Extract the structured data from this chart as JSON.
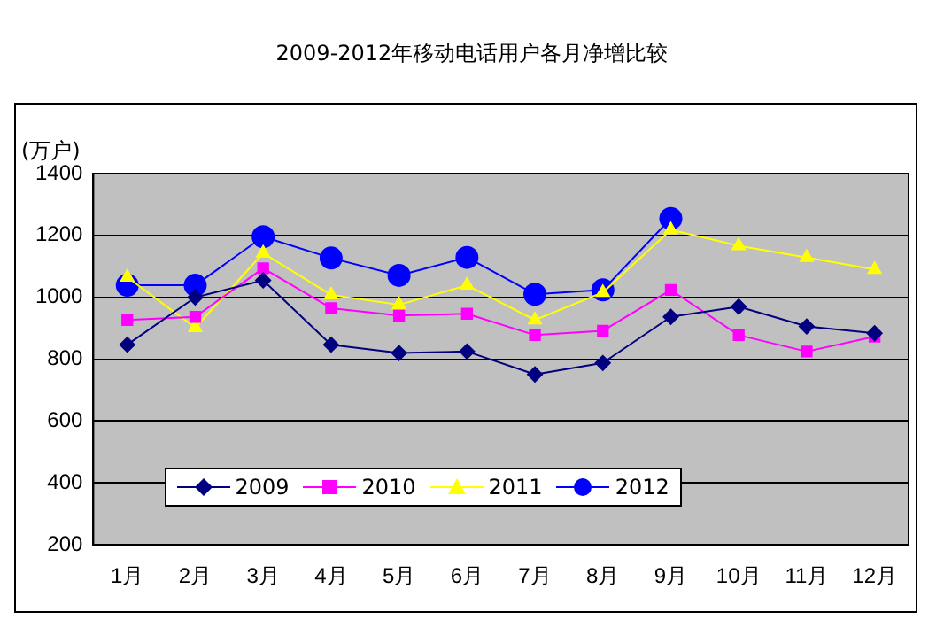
{
  "chart_data": {
    "type": "line",
    "title": "2009-2012年移动电话用户各月净增比较",
    "ylabel": "(万户)",
    "categories": [
      "1月",
      "2月",
      "3月",
      "4月",
      "5月",
      "6月",
      "7月",
      "8月",
      "9月",
      "10月",
      "11月",
      "12月"
    ],
    "series": [
      {
        "name": "2009",
        "color": "#000080",
        "marker": "diamond",
        "values": [
          847,
          1000,
          1055,
          847,
          820,
          825,
          751,
          788,
          937,
          970,
          906,
          884
        ]
      },
      {
        "name": "2010",
        "color": "#ff00ff",
        "marker": "square",
        "values": [
          927,
          937,
          1094,
          965,
          941,
          947,
          878,
          892,
          1024,
          878,
          825,
          873
        ]
      },
      {
        "name": "2011",
        "color": "#ffff00",
        "marker": "triangle",
        "values": [
          1065,
          902,
          1143,
          1008,
          976,
          1039,
          927,
          1016,
          1218,
          1167,
          1129,
          1090
        ]
      },
      {
        "name": "2012",
        "color": "#0000ff",
        "marker": "circle",
        "values": [
          1039,
          1039,
          1196,
          1127,
          1071,
          1129,
          1010,
          1024,
          1255,
          null,
          null,
          null
        ]
      }
    ],
    "ylim": [
      200,
      1400
    ],
    "yticks": [
      200,
      400,
      600,
      800,
      1000,
      1200,
      1400
    ],
    "grid": "y",
    "legend": "bottom left"
  }
}
